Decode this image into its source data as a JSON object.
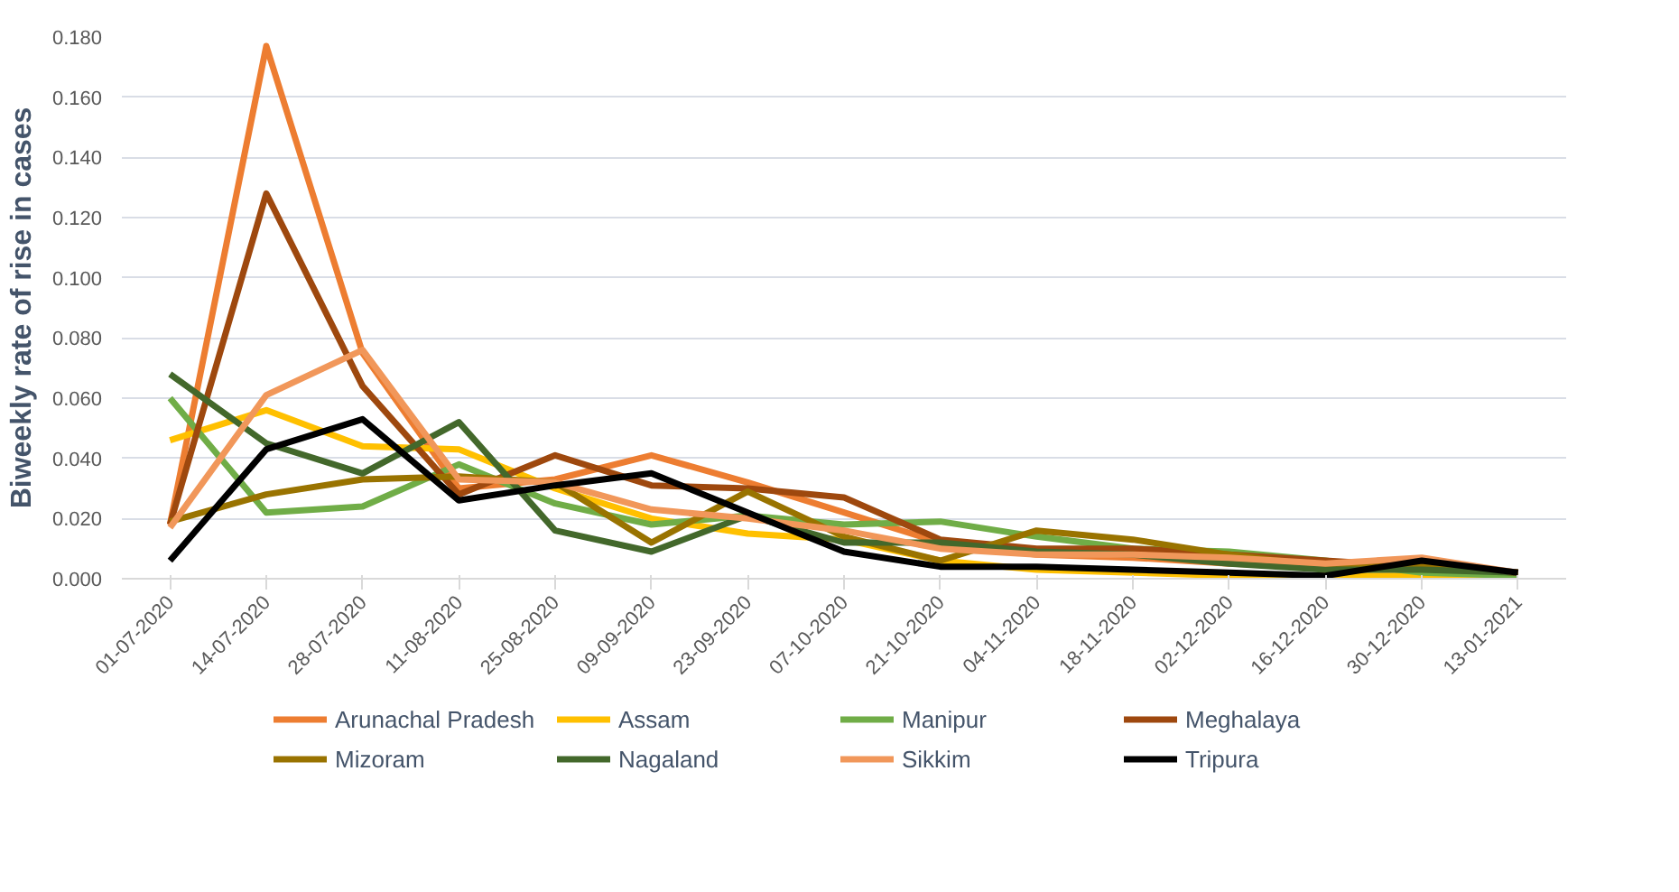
{
  "chart_data": {
    "type": "line",
    "ylabel": "Biweekly rate of rise in cases",
    "categories": [
      "01-07-2020",
      "14-07-2020",
      "28-07-2020",
      "11-08-2020",
      "25-08-2020",
      "09-09-2020",
      "23-09-2020",
      "07-10-2020",
      "21-10-2020",
      "04-11-2020",
      "18-11-2020",
      "02-12-2020",
      "16-12-2020",
      "30-12-2020",
      "13-01-2021"
    ],
    "ylim": [
      0,
      0.18
    ],
    "yticks": [
      {
        "value": 0,
        "label": "0.000"
      },
      {
        "value": 0.02,
        "label": "0.020"
      },
      {
        "value": 0.04,
        "label": "0.040"
      },
      {
        "value": 0.06,
        "label": "0.060"
      },
      {
        "value": 0.08,
        "label": "0.080"
      },
      {
        "value": 0.1,
        "label": "0.100"
      },
      {
        "value": 0.12,
        "label": "0.120"
      },
      {
        "value": 0.14,
        "label": "0.140"
      },
      {
        "value": 0.16,
        "label": "0.160"
      },
      {
        "value": 0.18,
        "label": "0.180"
      }
    ],
    "grid": "y",
    "legend": "bottom",
    "marker": "none",
    "line_style": "solid",
    "series": [
      {
        "name": "Arunachal Pradesh",
        "color": "#ed7d31",
        "values": [
          0.018,
          0.177,
          0.075,
          0.03,
          0.033,
          0.041,
          0.032,
          0.022,
          0.012,
          0.008,
          0.007,
          0.005,
          0.004,
          0.005,
          0.002
        ]
      },
      {
        "name": "Assam",
        "color": "#ffc000",
        "values": [
          0.046,
          0.056,
          0.044,
          0.043,
          0.03,
          0.02,
          0.015,
          0.013,
          0.006,
          0.003,
          0.002,
          0.001,
          0.001,
          0.001,
          0.001
        ]
      },
      {
        "name": "Manipur",
        "color": "#70ad47",
        "values": [
          0.06,
          0.022,
          0.024,
          0.038,
          0.025,
          0.018,
          0.021,
          0.018,
          0.019,
          0.014,
          0.01,
          0.009,
          0.006,
          0.002,
          0.001
        ]
      },
      {
        "name": "Meghalaya",
        "color": "#9e480e",
        "values": [
          0.018,
          0.128,
          0.064,
          0.028,
          0.041,
          0.031,
          0.03,
          0.027,
          0.013,
          0.01,
          0.01,
          0.008,
          0.006,
          0.004,
          0.002
        ]
      },
      {
        "name": "Mizoram",
        "color": "#997300",
        "values": [
          0.019,
          0.028,
          0.033,
          0.034,
          0.032,
          0.012,
          0.029,
          0.014,
          0.006,
          0.016,
          0.013,
          0.008,
          0.004,
          0.004,
          0.002
        ]
      },
      {
        "name": "Nagaland",
        "color": "#43682b",
        "values": [
          0.068,
          0.045,
          0.035,
          0.052,
          0.016,
          0.009,
          0.021,
          0.012,
          0.012,
          0.009,
          0.008,
          0.005,
          0.003,
          0.003,
          0.002
        ]
      },
      {
        "name": "Sikkim",
        "color": "#f1975a",
        "values": [
          0.017,
          0.061,
          0.076,
          0.033,
          0.032,
          0.023,
          0.02,
          0.016,
          0.01,
          0.008,
          0.008,
          0.007,
          0.005,
          0.007,
          0.002
        ]
      },
      {
        "name": "Tripura",
        "color": "#000000",
        "values": [
          0.006,
          0.043,
          0.053,
          0.026,
          0.031,
          0.035,
          0.022,
          0.009,
          0.004,
          0.004,
          0.003,
          0.002,
          0.001,
          0.006,
          0.002
        ]
      }
    ]
  }
}
